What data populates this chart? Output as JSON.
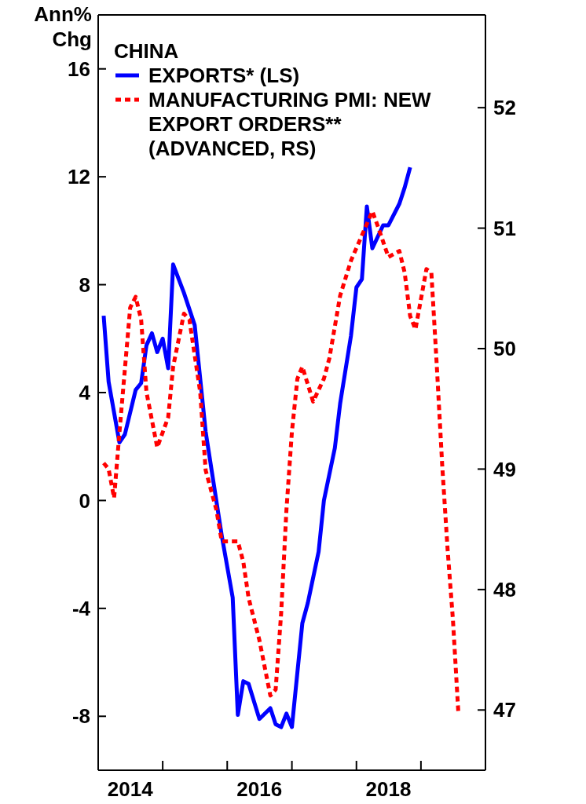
{
  "chart_data": {
    "type": "line",
    "ylabel": "Ann% Chg",
    "legend_title": "CHINA",
    "legend": "top left",
    "xlim": [
      "2014-01",
      "2020-01"
    ],
    "xticks": [
      {
        "value": "2014-01",
        "label": null
      },
      {
        "value": "2014-07",
        "label": "2014"
      },
      {
        "value": "2015-01",
        "label": null
      },
      {
        "value": "2016-01",
        "label": null
      },
      {
        "value": "2016-07",
        "label": "2016"
      },
      {
        "value": "2017-01",
        "label": null
      },
      {
        "value": "2018-01",
        "label": null
      },
      {
        "value": "2018-07",
        "label": "2018"
      },
      {
        "value": "2019-01",
        "label": null
      },
      {
        "value": "2020-01",
        "label": null
      }
    ],
    "ylim": [
      -10,
      18
    ],
    "yticks": [
      -8,
      -4,
      0,
      4,
      8,
      12,
      16
    ],
    "y2lim": [
      46.5,
      52.77
    ],
    "y2ticks": [
      47,
      48,
      49,
      50,
      51,
      52
    ],
    "series": [
      {
        "name": "EXPORTS* (LS)",
        "color": "#0000ff",
        "line_style": "solid",
        "x": [
          "2014-02",
          "2014-03",
          "2014-05",
          "2014-06",
          "2014-08",
          "2014-09",
          "2014-10",
          "2014-11",
          "2014-12",
          "2015-01",
          "2015-02",
          "2015-03",
          "2015-05",
          "2015-07",
          "2015-09",
          "2015-12",
          "2016-02",
          "2016-03",
          "2016-04",
          "2016-05",
          "2016-07",
          "2016-09",
          "2016-10",
          "2016-11",
          "2016-12",
          "2017-01",
          "2017-03",
          "2017-04",
          "2017-06",
          "2017-07",
          "2017-09",
          "2017-10",
          "2017-12",
          "2018-01",
          "2018-02",
          "2018-03",
          "2018-04",
          "2018-06",
          "2018-07",
          "2018-09",
          "2018-10",
          "2018-11"
        ],
        "values": [
          6.85,
          4.4,
          2.15,
          2.45,
          4.1,
          4.35,
          5.75,
          6.2,
          5.5,
          6.0,
          4.9,
          8.75,
          7.7,
          6.5,
          2.55,
          -1.3,
          -3.6,
          -7.95,
          -6.7,
          -6.8,
          -8.1,
          -7.7,
          -8.3,
          -8.4,
          -7.9,
          -8.4,
          -4.55,
          -3.8,
          -1.9,
          0.0,
          1.95,
          3.6,
          6.1,
          7.9,
          8.2,
          10.9,
          9.35,
          10.2,
          10.2,
          11.0,
          11.6,
          12.35
        ]
      },
      {
        "name": "MANUFACTURING PMI: NEW EXPORT ORDERS** (ADVANCED, RS)",
        "color": "#ff0000",
        "line_style": "dashed",
        "axis": "y2",
        "x": [
          "2014-02",
          "2014-03",
          "2014-04",
          "2014-05",
          "2014-07",
          "2014-08",
          "2014-09",
          "2014-10",
          "2014-12",
          "2015-02",
          "2015-03",
          "2015-05",
          "2015-06",
          "2015-08",
          "2015-09",
          "2015-11",
          "2015-12",
          "2016-03",
          "2016-04",
          "2016-05",
          "2016-07",
          "2016-09",
          "2016-10",
          "2016-11",
          "2016-12",
          "2017-01",
          "2017-02",
          "2017-03",
          "2017-05",
          "2017-07",
          "2017-08",
          "2017-10",
          "2017-12",
          "2018-02",
          "2018-04",
          "2018-05",
          "2018-07",
          "2018-09",
          "2018-10",
          "2018-11",
          "2018-12",
          "2019-02",
          "2019-03",
          "2019-04",
          "2019-05",
          "2019-06",
          "2019-07",
          "2019-08"
        ],
        "values": [
          49.05,
          49.0,
          48.76,
          49.3,
          50.34,
          50.43,
          50.24,
          49.64,
          49.18,
          49.43,
          49.85,
          50.29,
          50.24,
          49.64,
          48.99,
          48.66,
          48.4,
          48.4,
          48.23,
          47.93,
          47.58,
          47.12,
          47.17,
          47.8,
          48.66,
          49.31,
          49.75,
          49.85,
          49.56,
          49.75,
          49.92,
          50.44,
          50.73,
          50.94,
          51.14,
          51.02,
          50.76,
          50.81,
          50.63,
          50.27,
          50.16,
          50.66,
          50.63,
          49.85,
          49.04,
          48.33,
          47.75,
          46.97
        ]
      }
    ]
  }
}
